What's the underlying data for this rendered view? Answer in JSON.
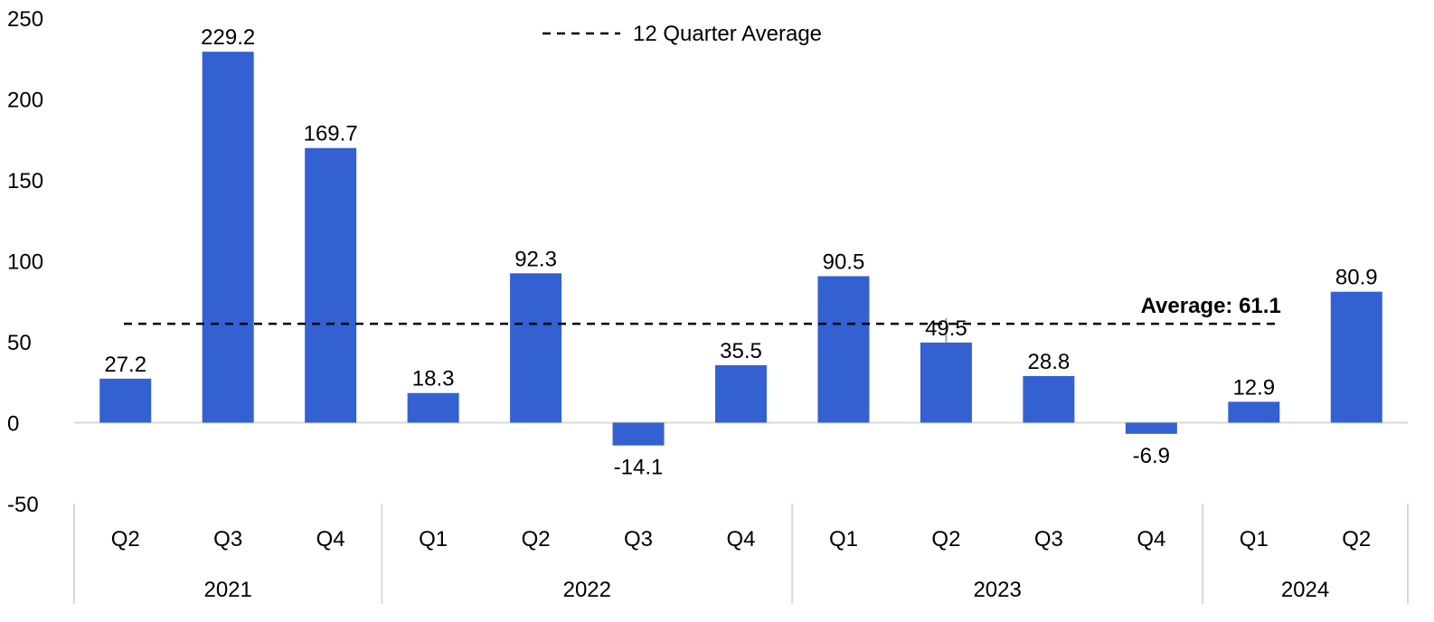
{
  "chart_data": {
    "type": "bar",
    "categories": [
      "Q2",
      "Q3",
      "Q4",
      "Q1",
      "Q2",
      "Q3",
      "Q4",
      "Q1",
      "Q2",
      "Q3",
      "Q4",
      "Q1",
      "Q2"
    ],
    "groups": [
      {
        "label": "2021",
        "count": 3
      },
      {
        "label": "2022",
        "count": 4
      },
      {
        "label": "2023",
        "count": 4
      },
      {
        "label": "2024",
        "count": 2
      }
    ],
    "values": [
      27.2,
      229.2,
      169.7,
      18.3,
      92.3,
      -14.1,
      35.5,
      90.5,
      49.5,
      28.8,
      -6.9,
      12.9,
      80.9
    ],
    "data_labels": [
      "27.2",
      "229.2",
      "169.7",
      "18.3",
      "92.3",
      "-14.1",
      "35.5",
      "90.5",
      "49.5",
      "28.8",
      "-6.9",
      "12.9",
      "80.9"
    ],
    "average": {
      "value": 61.1,
      "label": "Average: 61.1",
      "legend": "12 Quarter Average",
      "first_index": 0,
      "last_index": 11
    },
    "ylim": [
      -50,
      250
    ],
    "yticks": [
      -50,
      0,
      50,
      100,
      150,
      200,
      250
    ],
    "bar_color": "#3461D1",
    "legend_position": "top-center",
    "title": "",
    "xlabel": "",
    "ylabel": ""
  }
}
